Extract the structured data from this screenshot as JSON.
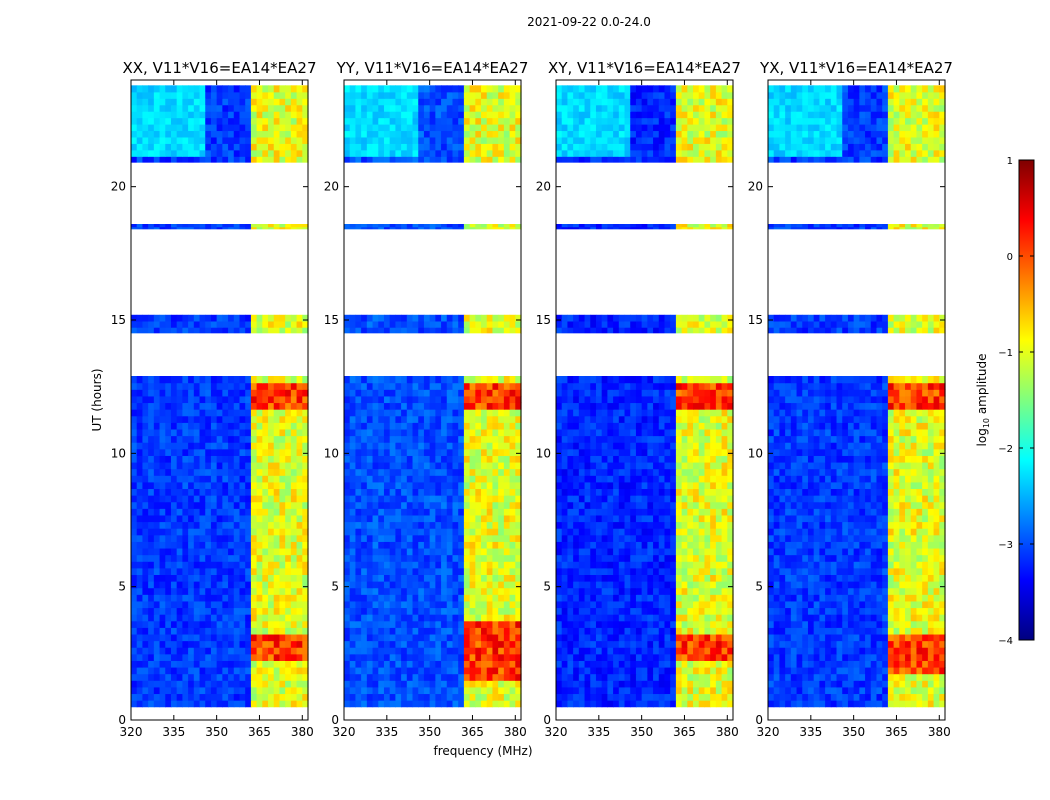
{
  "figure_title": "2021-09-22 0.0-24.0",
  "colormap": [
    "#00007f",
    "#0000ff",
    "#007fff",
    "#00ffff",
    "#7fff7f",
    "#ffff00",
    "#ff7f00",
    "#ff0000",
    "#7f0000"
  ],
  "chart_data": {
    "type": "heatmap",
    "suptitle": "2021-09-22 0.0-24.0",
    "xlabel": "frequency (MHz)",
    "ylabel": "UT (hours)",
    "xlim": [
      320,
      382
    ],
    "ylim": [
      0,
      24
    ],
    "xticks": [
      320,
      335,
      350,
      365,
      380
    ],
    "yticks": [
      0,
      5,
      10,
      15,
      20
    ],
    "panels": [
      {
        "title": "XX, V11*V16=EA14*EA27",
        "hot_hours": [
          [
            2.0,
            3.0
          ],
          [
            11.6,
            12.5
          ]
        ],
        "background_level": -3.1
      },
      {
        "title": "YY, V11*V16=EA14*EA27",
        "hot_hours": [
          [
            1.3,
            3.5
          ],
          [
            11.6,
            12.5
          ]
        ],
        "background_level": -3.0
      },
      {
        "title": "XY, V11*V16=EA14*EA27",
        "hot_hours": [
          [
            2.0,
            3.0
          ],
          [
            11.6,
            12.5
          ]
        ],
        "background_level": -3.2
      },
      {
        "title": "YX, V11*V16=EA14*EA27",
        "hot_hours": [
          [
            1.5,
            3.2
          ],
          [
            11.6,
            12.5
          ]
        ],
        "background_level": -3.1
      }
    ],
    "data_hours": [
      [
        0.5,
        12.9
      ],
      [
        14.5,
        15.2
      ],
      [
        18.4,
        18.6
      ],
      [
        20.9,
        23.8
      ]
    ],
    "flagged_hours": [
      [
        12.9,
        14.5
      ],
      [
        15.2,
        18.4
      ],
      [
        18.6,
        20.9
      ]
    ],
    "bright_band_mhz": [
      361,
      381
    ],
    "colorbar": {
      "label": "log10 amplitude",
      "label_base": "log",
      "label_sub": "10",
      "label_rest": " amplitude",
      "range": [
        -4,
        1
      ],
      "ticks": [
        "1",
        "0",
        "−1",
        "−2",
        "−3",
        "−4"
      ],
      "tick_values": [
        1,
        0,
        -1,
        -2,
        -3,
        -4
      ]
    }
  }
}
